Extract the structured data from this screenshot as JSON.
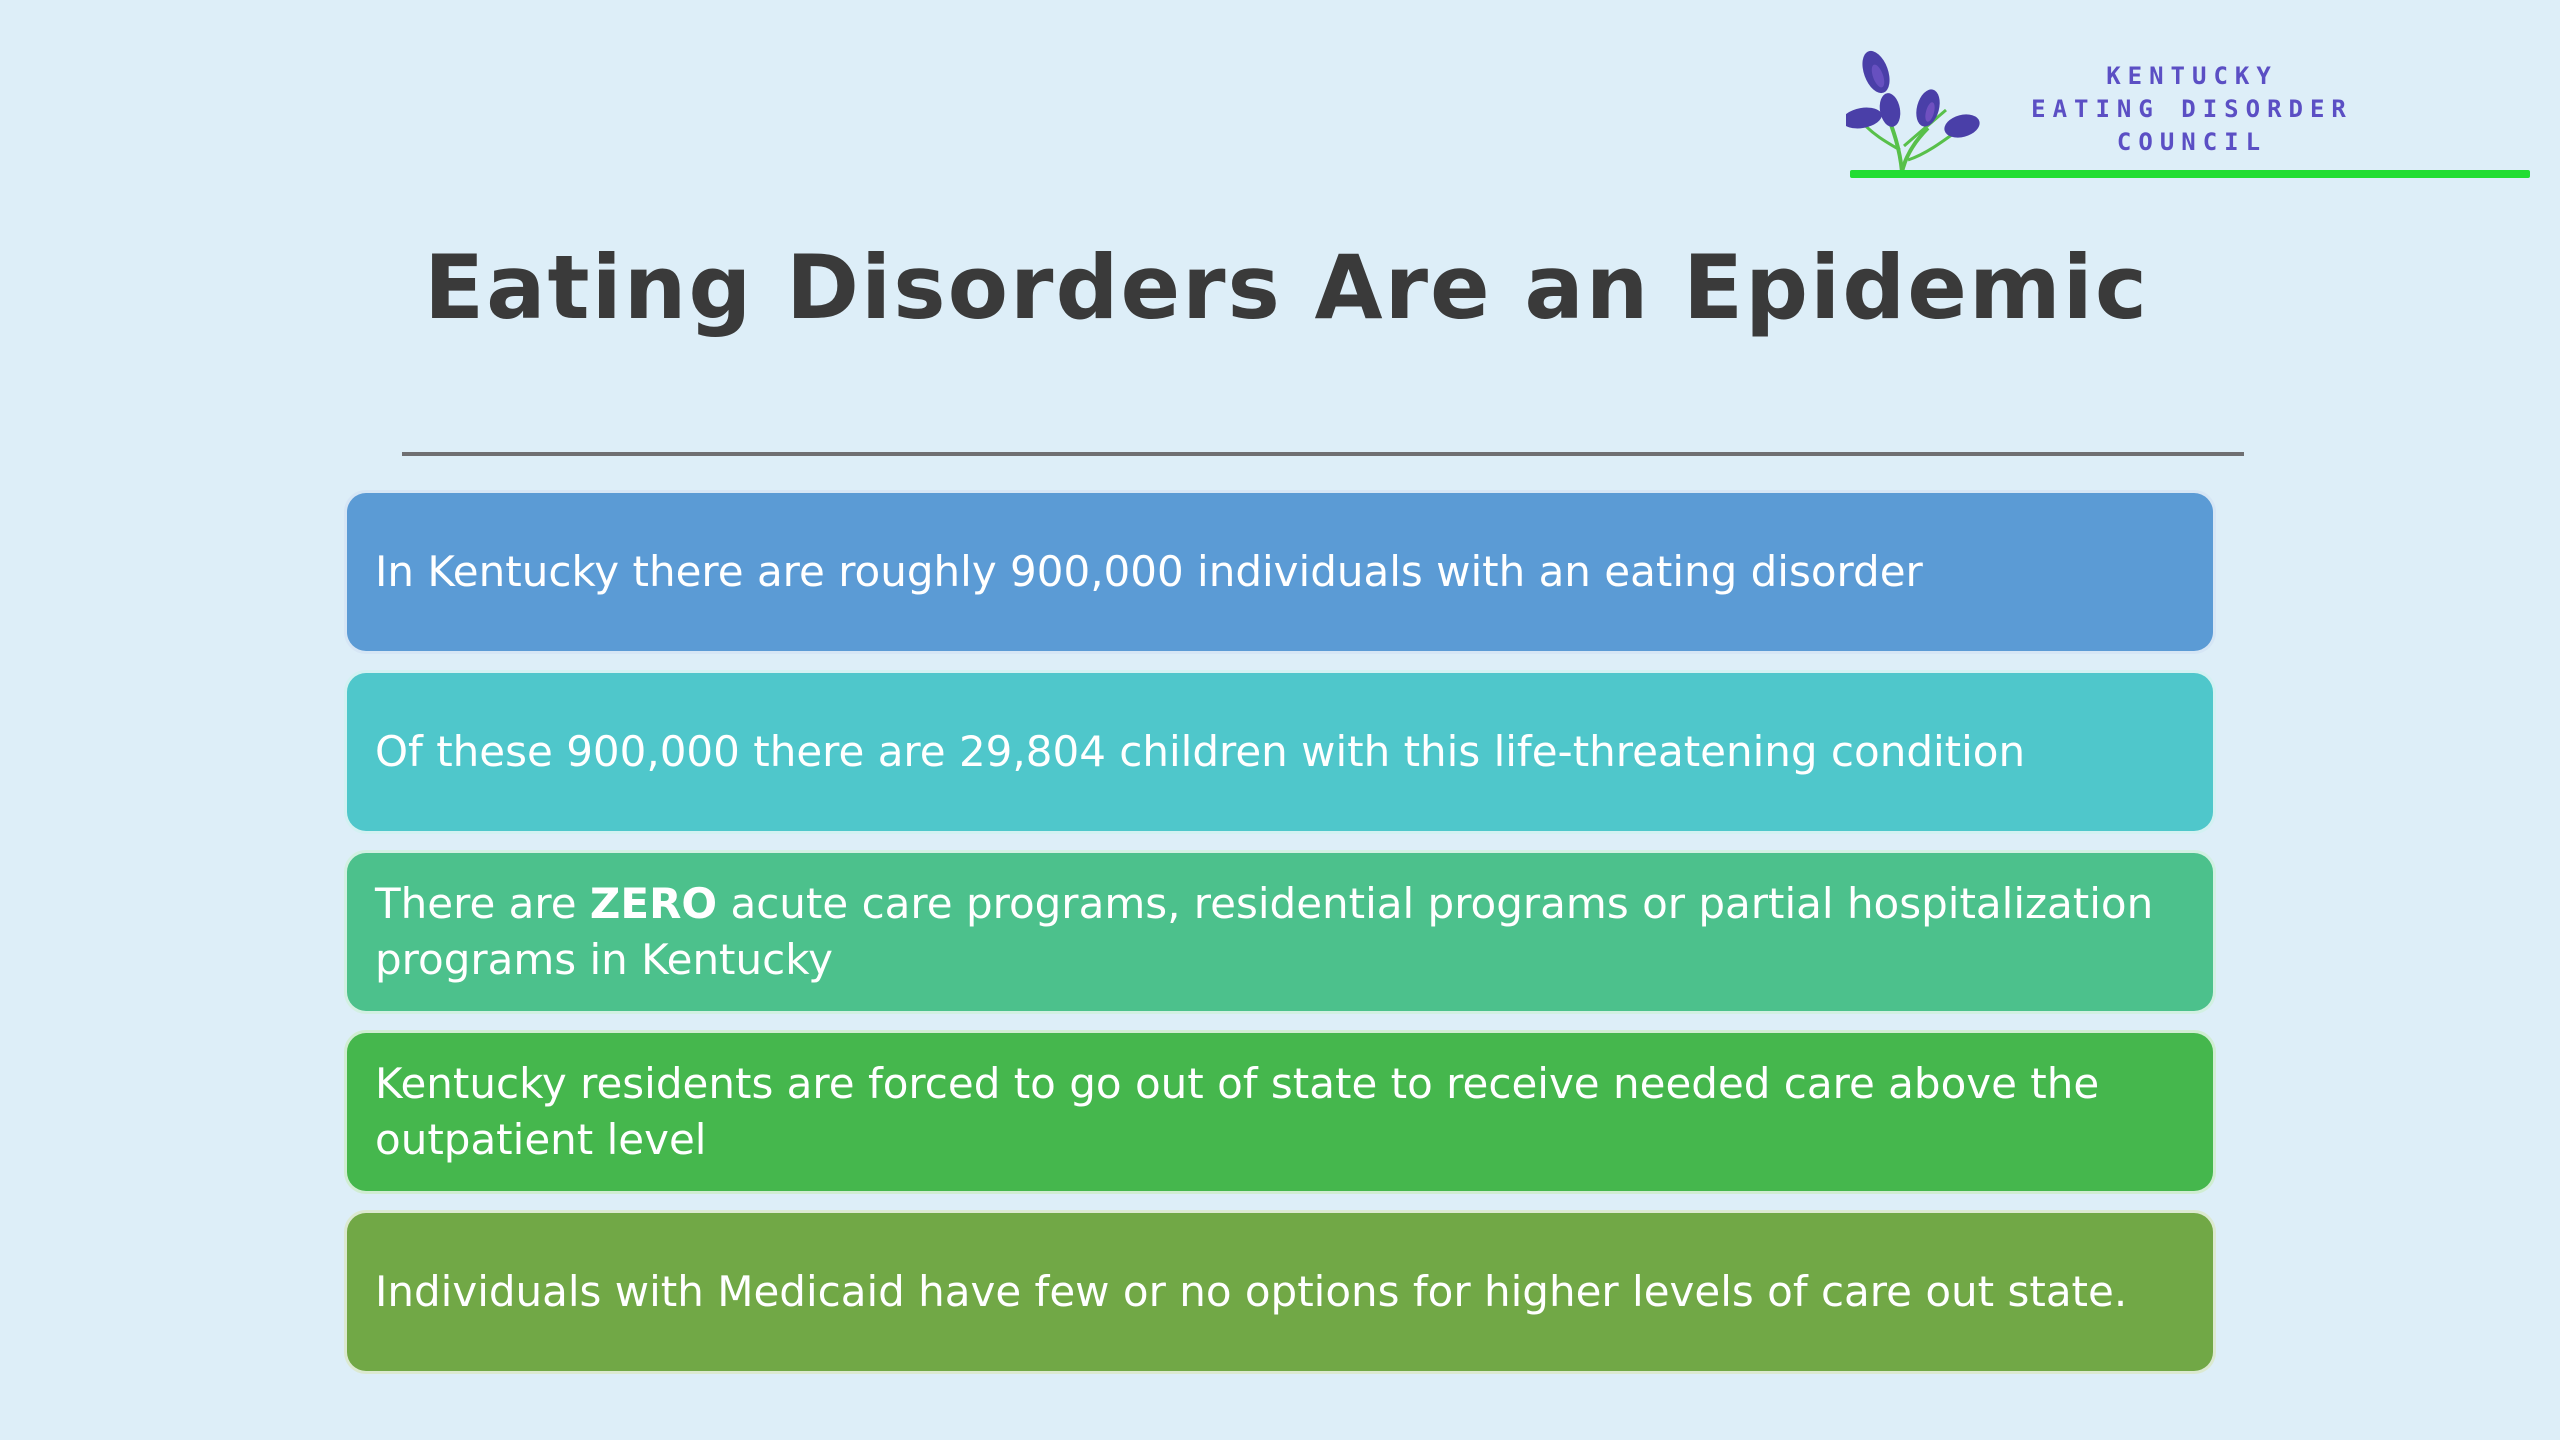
{
  "logo": {
    "line1": "KENTUCKY",
    "line2": "EATING DISORDER",
    "line3": "COUNCIL",
    "icon": "plant-leaves-icon",
    "leaf_color": "#4a3fa8",
    "accent_line_color": "#22dd33"
  },
  "title": "Eating Disorders Are an Epidemic",
  "bullets": [
    {
      "text": "In Kentucky there are roughly 900,000 individuals with an eating disorder",
      "color": "#5b9bd5"
    },
    {
      "text": "Of these 900,000 there are 29,804 children with this life-threatening condition",
      "color": "#4fc7cb"
    },
    {
      "text_before": "There are ",
      "text_bold": "ZERO",
      "text_after": " acute care programs, residential programs or partial hospitalization programs in Kentucky",
      "color": "#4cc18c"
    },
    {
      "text": "Kentucky residents are forced to go out of state to receive needed care above the outpatient level",
      "color": "#45b74d"
    },
    {
      "text": "Individuals with Medicaid have few or no options for higher levels of care out state.",
      "color": "#71a846"
    }
  ]
}
